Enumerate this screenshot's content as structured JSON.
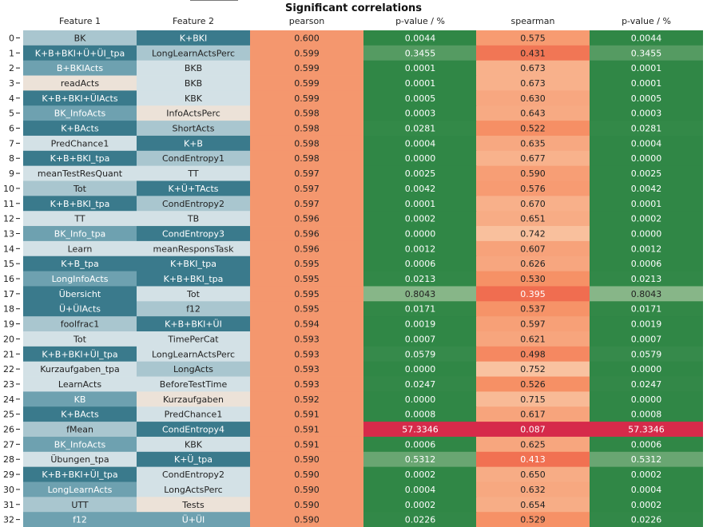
{
  "chart_data": {
    "type": "table",
    "title": "Significant correlations",
    "columns": [
      "Feature 1",
      "Feature 2",
      "pearson",
      "p-value / %",
      "spearman",
      "p-value / %"
    ],
    "rows": [
      {
        "index": "0",
        "feature1": "BK",
        "feature2": "K+BKI",
        "pearson": "0.600",
        "p1": "0.0044",
        "spearman": "0.575",
        "p2": "0.0044"
      },
      {
        "index": "1",
        "feature1": "K+B+BKI+Ü+ÜI_tpa",
        "feature2": "LongLearnActsPerc",
        "pearson": "0.599",
        "p1": "0.3455",
        "spearman": "0.431",
        "p2": "0.3455"
      },
      {
        "index": "2",
        "feature1": "B+BKIActs",
        "feature2": "BKB",
        "pearson": "0.599",
        "p1": "0.0001",
        "spearman": "0.673",
        "p2": "0.0001"
      },
      {
        "index": "3",
        "feature1": "readActs",
        "feature2": "BKB",
        "pearson": "0.599",
        "p1": "0.0001",
        "spearman": "0.673",
        "p2": "0.0001"
      },
      {
        "index": "4",
        "feature1": "K+B+BKI+ÜIActs",
        "feature2": "KBK",
        "pearson": "0.599",
        "p1": "0.0005",
        "spearman": "0.630",
        "p2": "0.0005"
      },
      {
        "index": "5",
        "feature1": "BK_InfoActs",
        "feature2": "InfoActsPerc",
        "pearson": "0.598",
        "p1": "0.0003",
        "spearman": "0.643",
        "p2": "0.0003"
      },
      {
        "index": "6",
        "feature1": "K+BActs",
        "feature2": "ShortActs",
        "pearson": "0.598",
        "p1": "0.0281",
        "spearman": "0.522",
        "p2": "0.0281"
      },
      {
        "index": "7",
        "feature1": "PredChance1",
        "feature2": "K+B",
        "pearson": "0.598",
        "p1": "0.0004",
        "spearman": "0.635",
        "p2": "0.0004"
      },
      {
        "index": "8",
        "feature1": "K+B+BKI_tpa",
        "feature2": "CondEntropy1",
        "pearson": "0.598",
        "p1": "0.0000",
        "spearman": "0.677",
        "p2": "0.0000"
      },
      {
        "index": "9",
        "feature1": "meanTestResQuant",
        "feature2": "TT",
        "pearson": "0.597",
        "p1": "0.0025",
        "spearman": "0.590",
        "p2": "0.0025"
      },
      {
        "index": "10",
        "feature1": "Tot",
        "feature2": "K+Ü+TActs",
        "pearson": "0.597",
        "p1": "0.0042",
        "spearman": "0.576",
        "p2": "0.0042"
      },
      {
        "index": "11",
        "feature1": "K+B+BKI_tpa",
        "feature2": "CondEntropy2",
        "pearson": "0.597",
        "p1": "0.0001",
        "spearman": "0.670",
        "p2": "0.0001"
      },
      {
        "index": "12",
        "feature1": "TT",
        "feature2": "TB",
        "pearson": "0.596",
        "p1": "0.0002",
        "spearman": "0.651",
        "p2": "0.0002"
      },
      {
        "index": "13",
        "feature1": "BK_Info_tpa",
        "feature2": "CondEntropy3",
        "pearson": "0.596",
        "p1": "0.0000",
        "spearman": "0.742",
        "p2": "0.0000"
      },
      {
        "index": "14",
        "feature1": "Learn",
        "feature2": "meanResponsTask",
        "pearson": "0.596",
        "p1": "0.0012",
        "spearman": "0.607",
        "p2": "0.0012"
      },
      {
        "index": "15",
        "feature1": "K+B_tpa",
        "feature2": "K+BKI_tpa",
        "pearson": "0.595",
        "p1": "0.0006",
        "spearman": "0.626",
        "p2": "0.0006"
      },
      {
        "index": "16",
        "feature1": "LongInfoActs",
        "feature2": "K+B+BKI_tpa",
        "pearson": "0.595",
        "p1": "0.0213",
        "spearman": "0.530",
        "p2": "0.0213"
      },
      {
        "index": "17",
        "feature1": "Übersicht",
        "feature2": "Tot",
        "pearson": "0.595",
        "p1": "0.8043",
        "spearman": "0.395",
        "p2": "0.8043"
      },
      {
        "index": "18",
        "feature1": "Ü+ÜIActs",
        "feature2": "f12",
        "pearson": "0.595",
        "p1": "0.0171",
        "spearman": "0.537",
        "p2": "0.0171"
      },
      {
        "index": "19",
        "feature1": "foolfrac1",
        "feature2": "K+B+BKI+ÜI",
        "pearson": "0.594",
        "p1": "0.0019",
        "spearman": "0.597",
        "p2": "0.0019"
      },
      {
        "index": "20",
        "feature1": "Tot",
        "feature2": "TimePerCat",
        "pearson": "0.593",
        "p1": "0.0007",
        "spearman": "0.621",
        "p2": "0.0007"
      },
      {
        "index": "21",
        "feature1": "K+B+BKI+ÜI_tpa",
        "feature2": "LongLearnActsPerc",
        "pearson": "0.593",
        "p1": "0.0579",
        "spearman": "0.498",
        "p2": "0.0579"
      },
      {
        "index": "22",
        "feature1": "Kurzaufgaben_tpa",
        "feature2": "LongActs",
        "pearson": "0.593",
        "p1": "0.0000",
        "spearman": "0.752",
        "p2": "0.0000"
      },
      {
        "index": "23",
        "feature1": "LearnActs",
        "feature2": "BeforeTestTime",
        "pearson": "0.593",
        "p1": "0.0247",
        "spearman": "0.526",
        "p2": "0.0247"
      },
      {
        "index": "24",
        "feature1": "KB",
        "feature2": "Kurzaufgaben",
        "pearson": "0.592",
        "p1": "0.0000",
        "spearman": "0.715",
        "p2": "0.0000"
      },
      {
        "index": "25",
        "feature1": "K+BActs",
        "feature2": "PredChance1",
        "pearson": "0.591",
        "p1": "0.0008",
        "spearman": "0.617",
        "p2": "0.0008"
      },
      {
        "index": "26",
        "feature1": "fMean",
        "feature2": "CondEntropy4",
        "pearson": "0.591",
        "p1": "57.3346",
        "spearman": "0.087",
        "p2": "57.3346"
      },
      {
        "index": "27",
        "feature1": "BK_InfoActs",
        "feature2": "KBK",
        "pearson": "0.591",
        "p1": "0.0006",
        "spearman": "0.625",
        "p2": "0.0006"
      },
      {
        "index": "28",
        "feature1": "Übungen_tpa",
        "feature2": "K+Ü_tpa",
        "pearson": "0.590",
        "p1": "0.5312",
        "spearman": "0.413",
        "p2": "0.5312"
      },
      {
        "index": "29",
        "feature1": "K+B+BKI+ÜI_tpa",
        "feature2": "CondEntropy2",
        "pearson": "0.590",
        "p1": "0.0002",
        "spearman": "0.650",
        "p2": "0.0002"
      },
      {
        "index": "30",
        "feature1": "LongLearnActs",
        "feature2": "LongActsPerc",
        "pearson": "0.590",
        "p1": "0.0004",
        "spearman": "0.632",
        "p2": "0.0004"
      },
      {
        "index": "31",
        "feature1": "UTT",
        "feature2": "Tests",
        "pearson": "0.590",
        "p1": "0.0002",
        "spearman": "0.654",
        "p2": "0.0002"
      },
      {
        "index": "32",
        "feature1": "f12",
        "feature2": "Ü+ÜI",
        "pearson": "0.590",
        "p1": "0.0226",
        "spearman": "0.529",
        "p2": "0.0226"
      }
    ],
    "feature_colors": {
      "dark": "#3a7a8c",
      "mid": "#6ea1b0",
      "light": "#a9c6cf",
      "pale": "#d3e1e6",
      "beige": "#ece2d8"
    },
    "feature1_shades": [
      "light",
      "dark",
      "mid",
      "beige",
      "dark",
      "mid",
      "dark",
      "pale",
      "dark",
      "pale",
      "light",
      "dark",
      "pale",
      "mid",
      "pale",
      "dark",
      "mid",
      "dark",
      "dark",
      "light",
      "pale",
      "dark",
      "pale",
      "pale",
      "mid",
      "dark",
      "light",
      "mid",
      "pale",
      "dark",
      "mid",
      "light",
      "mid"
    ],
    "feature2_shades": [
      "dark",
      "light",
      "pale",
      "pale",
      "pale",
      "beige",
      "light",
      "dark",
      "light",
      "pale",
      "dark",
      "light",
      "pale",
      "dark",
      "pale",
      "dark",
      "dark",
      "pale",
      "light",
      "dark",
      "pale",
      "pale",
      "light",
      "pale",
      "beige",
      "pale",
      "dark",
      "pale",
      "dark",
      "pale",
      "pale",
      "beige",
      "mid"
    ]
  }
}
